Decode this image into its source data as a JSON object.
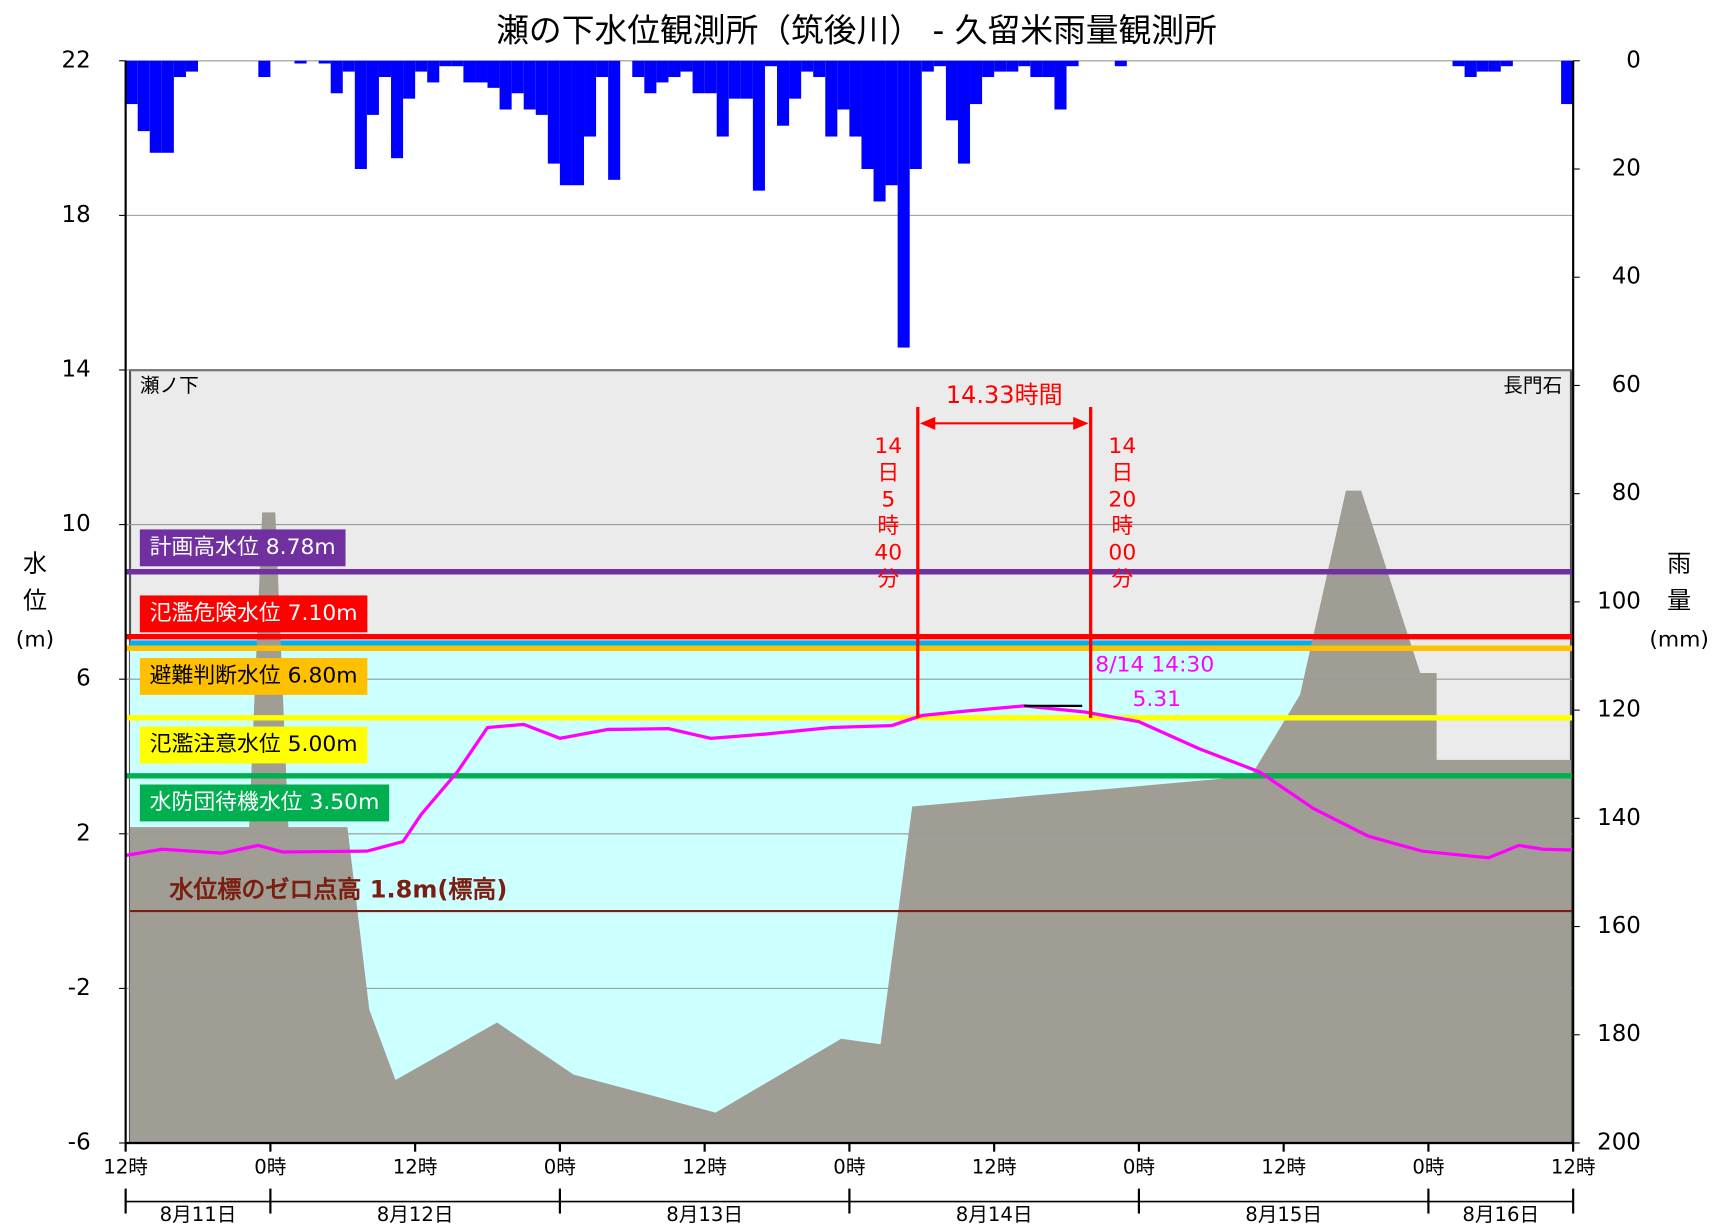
{
  "chart_data": {
    "type": "line",
    "title": "瀬の下水位観測所（筑後川） - 久留米雨量観測所",
    "y_label": [
      "水",
      "位",
      "(m)"
    ],
    "y2_label": [
      "雨",
      "量",
      "(mm)"
    ],
    "station_left": "瀬ノ下",
    "station_right": "長門石",
    "xlim": [
      0,
      120
    ],
    "xticks": [
      {
        "value": 0,
        "label": "12時"
      },
      {
        "value": 12,
        "label": "0時"
      },
      {
        "value": 24,
        "label": "12時"
      },
      {
        "value": 36,
        "label": "0時"
      },
      {
        "value": 48,
        "label": "12時"
      },
      {
        "value": 60,
        "label": "0時"
      },
      {
        "value": 72,
        "label": "12時"
      },
      {
        "value": 84,
        "label": "0時"
      },
      {
        "value": 96,
        "label": "12時"
      },
      {
        "value": 108,
        "label": "0時"
      },
      {
        "value": 120,
        "label": "12時"
      }
    ],
    "date_labels": [
      {
        "label": "8月11日",
        "start": 0,
        "end": 12
      },
      {
        "label": "8月12日",
        "start": 12,
        "end": 36
      },
      {
        "label": "8月13日",
        "start": 36,
        "end": 60
      },
      {
        "label": "8月14日",
        "start": 60,
        "end": 84
      },
      {
        "label": "8月15日",
        "start": 84,
        "end": 108
      },
      {
        "label": "8月16日",
        "start": 108,
        "end": 120
      }
    ],
    "ylim": [
      -6,
      22
    ],
    "yticks": [
      -6,
      -2,
      2,
      6,
      10,
      14,
      18,
      22
    ],
    "y2lim": [
      0,
      200
    ],
    "y2_inverted": true,
    "y2ticks": [
      0,
      20,
      40,
      60,
      80,
      100,
      120,
      140,
      160,
      180,
      200
    ],
    "grid": true,
    "series": [
      {
        "type": "bar",
        "axis": "y2",
        "color": "#0000ff",
        "x": [
          0,
          1,
          2,
          3,
          4,
          5,
          6,
          7,
          8,
          9,
          10,
          11,
          12,
          13,
          14,
          15,
          16,
          17,
          18,
          19,
          20,
          21,
          22,
          23,
          24,
          25,
          26,
          27,
          28,
          29,
          30,
          31,
          32,
          33,
          34,
          35,
          36,
          37,
          38,
          39,
          40,
          41,
          42,
          43,
          44,
          45,
          46,
          47,
          48,
          49,
          50,
          51,
          52,
          53,
          54,
          55,
          56,
          57,
          58,
          59,
          60,
          61,
          62,
          63,
          64,
          65,
          66,
          67,
          68,
          69,
          70,
          71,
          72,
          73,
          74,
          75,
          76,
          77,
          78,
          79,
          80,
          81,
          82,
          83,
          84,
          85,
          86,
          87,
          88,
          89,
          90,
          91,
          92,
          93,
          94,
          95,
          96,
          97,
          98,
          99,
          100,
          101,
          102,
          103,
          104,
          105,
          106,
          107,
          108,
          109,
          110,
          111,
          112,
          113,
          114,
          115,
          116,
          117,
          118,
          119
        ],
        "values": [
          8,
          13,
          17,
          17,
          3,
          2,
          0,
          0,
          0,
          0,
          0,
          3,
          0,
          0,
          0.5,
          0,
          0.5,
          6,
          2,
          20,
          10,
          3,
          18,
          7,
          2,
          4,
          1,
          1,
          4,
          4,
          5,
          9,
          6,
          9,
          10,
          19,
          23,
          23,
          14,
          3,
          22,
          0,
          3,
          6,
          4,
          3,
          2,
          6,
          6,
          14,
          7,
          7,
          24,
          1,
          12,
          7,
          2,
          3,
          14,
          9,
          14,
          20,
          26,
          23,
          53,
          20,
          2,
          1,
          11,
          19,
          8,
          3,
          2,
          2,
          1,
          3,
          3,
          9,
          1,
          0,
          0,
          0,
          1,
          0,
          0,
          0,
          0,
          0,
          0,
          0,
          0,
          0,
          0,
          0,
          0,
          0,
          0,
          0,
          0,
          0,
          0,
          0,
          0,
          0,
          0,
          0,
          0,
          0,
          0,
          0,
          1,
          3,
          2,
          2,
          1,
          0,
          0,
          0,
          0,
          8
        ]
      },
      {
        "type": "line",
        "color": "#ff00ff",
        "x": [
          0,
          3,
          8,
          11,
          13,
          20,
          23,
          24.5,
          27.5,
          30,
          33,
          36,
          40,
          45,
          48.5,
          53,
          58.5,
          63.5,
          66,
          69.5,
          74.5,
          79.5,
          84,
          89,
          94,
          98.5,
          103,
          107.5,
          111,
          113,
          115.5,
          117.5,
          120
        ],
        "values": [
          1.44,
          1.6,
          1.5,
          1.7,
          1.53,
          1.55,
          1.8,
          2.5,
          3.6,
          4.75,
          4.83,
          4.47,
          4.7,
          4.72,
          4.47,
          4.58,
          4.75,
          4.8,
          5.06,
          5.17,
          5.31,
          5.15,
          4.9,
          4.2,
          3.6,
          2.65,
          1.94,
          1.55,
          1.44,
          1.38,
          1.7,
          1.6,
          1.58
        ]
      }
    ],
    "thresholds": [
      {
        "label": "計画高水位 8.78m",
        "value": 8.78,
        "color": "#7030a0",
        "text_color": "#ffffff"
      },
      {
        "label": "氾濫危険水位 7.10m",
        "value": 7.1,
        "color": "#ff0000",
        "text_color": "#ffffff"
      },
      {
        "label": "避難判断水位 6.80m",
        "value": 6.8,
        "color": "#ffc000",
        "text_color": "#000000"
      },
      {
        "label": "氾濫注意水位 5.00m",
        "value": 5.0,
        "color": "#ffff00",
        "text_color": "#000000"
      },
      {
        "label": "水防団待機水位 3.50m",
        "value": 3.5,
        "color": "#00b050",
        "text_color": "#ffffff"
      }
    ],
    "zero_line": {
      "label": "水位標のゼロ点高 1.8m(標高)",
      "value": 0,
      "color": "#7b1e12"
    },
    "duration": {
      "label": "14.33時間",
      "start": 65.67,
      "end": 80,
      "start_label": [
        "14",
        "日",
        "5",
        "時",
        "40",
        "分"
      ],
      "end_label": [
        "14",
        "日",
        "20",
        "時",
        "00",
        "分"
      ],
      "color": "#ff0000"
    },
    "peak": {
      "label": "8/14 14:30",
      "x": 74.5,
      "value": 5.31,
      "end": 79.3,
      "color": "#ff00ff"
    }
  }
}
